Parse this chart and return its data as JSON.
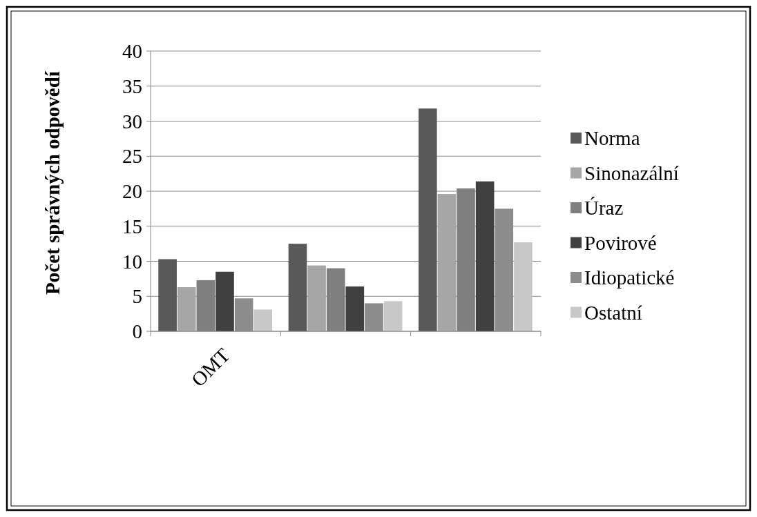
{
  "chart_data": {
    "type": "bar",
    "ylabel": "Počet správných odpovědí",
    "categories": [
      "OMT",
      null,
      null
    ],
    "series": [
      {
        "name": "Norma",
        "color": "#595959",
        "values": [
          10.3,
          12.5,
          31.8
        ]
      },
      {
        "name": "Sinonazální",
        "color": "#a6a6a6",
        "values": [
          6.3,
          9.4,
          19.6
        ]
      },
      {
        "name": "Úraz",
        "color": "#7f7f7f",
        "values": [
          7.3,
          9.0,
          20.4
        ]
      },
      {
        "name": "Povirové",
        "color": "#404040",
        "values": [
          8.5,
          6.4,
          21.4
        ]
      },
      {
        "name": "Idiopatické",
        "color": "#8c8c8c",
        "values": [
          4.7,
          4.0,
          17.5
        ]
      },
      {
        "name": "Ostatní",
        "color": "#c8c8c8",
        "values": [
          3.1,
          4.3,
          12.7
        ]
      }
    ],
    "ylim": [
      0,
      40
    ],
    "yticks": [
      0,
      5,
      10,
      15,
      20,
      25,
      30,
      35,
      40
    ],
    "grid": "y",
    "legend": "right"
  }
}
